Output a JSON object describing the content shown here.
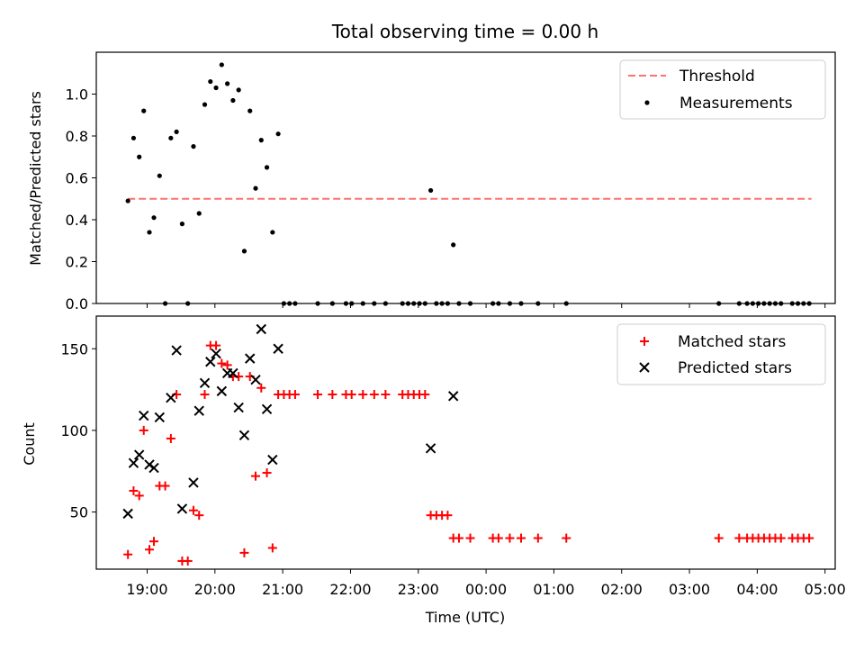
{
  "chart_data": [
    {
      "type": "scatter",
      "title": "Total observing time = 0.00 h",
      "xlabel": "",
      "ylabel": "Matched/Predicted stars",
      "ylim": [
        0,
        1.2
      ],
      "yticks": [
        "0.0",
        "0.2",
        "0.4",
        "0.6",
        "0.8",
        "1.0"
      ],
      "legend": {
        "position": "top-right",
        "entries": [
          "Threshold",
          "Measurements"
        ]
      },
      "threshold": {
        "name": "Threshold",
        "value": 0.5,
        "x_start": "18:43",
        "x_end": "04:48",
        "color": "#ff7070"
      },
      "series": [
        {
          "name": "Measurements",
          "color": "#000000",
          "points": [
            [
              "18:43",
              0.49
            ],
            [
              "18:48",
              0.79
            ],
            [
              "18:53",
              0.7
            ],
            [
              "18:57",
              0.92
            ],
            [
              "19:02",
              0.34
            ],
            [
              "19:06",
              0.41
            ],
            [
              "19:11",
              0.61
            ],
            [
              "19:16",
              0.0
            ],
            [
              "19:21",
              0.79
            ],
            [
              "19:26",
              0.82
            ],
            [
              "19:31",
              0.38
            ],
            [
              "19:36",
              0.0
            ],
            [
              "19:41",
              0.75
            ],
            [
              "19:46",
              0.43
            ],
            [
              "19:51",
              0.95
            ],
            [
              "19:56",
              1.06
            ],
            [
              "20:01",
              1.03
            ],
            [
              "20:06",
              1.14
            ],
            [
              "20:11",
              1.05
            ],
            [
              "20:16",
              0.97
            ],
            [
              "20:21",
              1.02
            ],
            [
              "20:26",
              0.25
            ],
            [
              "20:31",
              0.92
            ],
            [
              "20:36",
              0.55
            ],
            [
              "20:41",
              0.78
            ],
            [
              "20:46",
              0.65
            ],
            [
              "20:51",
              0.34
            ],
            [
              "20:56",
              0.81
            ],
            [
              "21:01",
              0.0
            ],
            [
              "21:06",
              0.0
            ],
            [
              "21:11",
              0.0
            ],
            [
              "21:31",
              0.0
            ],
            [
              "21:44",
              0.0
            ],
            [
              "21:56",
              0.0
            ],
            [
              "22:01",
              0.0
            ],
            [
              "22:11",
              0.0
            ],
            [
              "22:21",
              0.0
            ],
            [
              "22:31",
              0.0
            ],
            [
              "22:46",
              0.0
            ],
            [
              "22:51",
              0.0
            ],
            [
              "22:56",
              0.0
            ],
            [
              "23:01",
              0.0
            ],
            [
              "23:06",
              0.0
            ],
            [
              "23:11",
              0.54
            ],
            [
              "23:16",
              0.0
            ],
            [
              "23:21",
              0.0
            ],
            [
              "23:26",
              0.0
            ],
            [
              "23:31",
              0.28
            ],
            [
              "23:36",
              0.0
            ],
            [
              "23:46",
              0.0
            ],
            [
              "00:06",
              0.0
            ],
            [
              "00:11",
              0.0
            ],
            [
              "00:21",
              0.0
            ],
            [
              "00:31",
              0.0
            ],
            [
              "00:46",
              0.0
            ],
            [
              "01:11",
              0.0
            ],
            [
              "03:26",
              0.0
            ],
            [
              "03:44",
              0.0
            ],
            [
              "03:51",
              0.0
            ],
            [
              "03:56",
              0.0
            ],
            [
              "04:01",
              0.0
            ],
            [
              "04:06",
              0.0
            ],
            [
              "04:11",
              0.0
            ],
            [
              "04:16",
              0.0
            ],
            [
              "04:21",
              0.0
            ],
            [
              "04:31",
              0.0
            ],
            [
              "04:36",
              0.0
            ],
            [
              "04:41",
              0.0
            ],
            [
              "04:46",
              0.0
            ]
          ]
        }
      ]
    },
    {
      "type": "scatter",
      "title": "",
      "xlabel": "Time (UTC)",
      "ylabel": "Count",
      "ylim": [
        15,
        170
      ],
      "yticks": [
        "50",
        "100",
        "150"
      ],
      "xticks": [
        "19:00",
        "20:00",
        "21:00",
        "22:00",
        "23:00",
        "00:00",
        "01:00",
        "02:00",
        "03:00",
        "04:00",
        "05:00"
      ],
      "legend": {
        "position": "top-right",
        "entries": [
          "Matched stars",
          "Predicted stars"
        ]
      },
      "series": [
        {
          "name": "Matched stars",
          "color": "#ff0000",
          "marker": "plus",
          "points": [
            [
              "18:43",
              24
            ],
            [
              "18:48",
              63
            ],
            [
              "18:53",
              60
            ],
            [
              "18:57",
              100
            ],
            [
              "19:02",
              27
            ],
            [
              "19:06",
              32
            ],
            [
              "19:11",
              66
            ],
            [
              "19:16",
              66
            ],
            [
              "19:21",
              95
            ],
            [
              "19:26",
              122
            ],
            [
              "19:31",
              20
            ],
            [
              "19:36",
              20
            ],
            [
              "19:41",
              51
            ],
            [
              "19:46",
              48
            ],
            [
              "19:51",
              122
            ],
            [
              "19:56",
              152
            ],
            [
              "20:01",
              152
            ],
            [
              "20:06",
              141
            ],
            [
              "20:11",
              140
            ],
            [
              "20:16",
              133
            ],
            [
              "20:21",
              133
            ],
            [
              "20:26",
              25
            ],
            [
              "20:31",
              133
            ],
            [
              "20:36",
              72
            ],
            [
              "20:41",
              126
            ],
            [
              "20:46",
              74
            ],
            [
              "20:51",
              28
            ],
            [
              "20:56",
              122
            ],
            [
              "21:01",
              122
            ],
            [
              "21:06",
              122
            ],
            [
              "21:11",
              122
            ],
            [
              "21:31",
              122
            ],
            [
              "21:44",
              122
            ],
            [
              "21:56",
              122
            ],
            [
              "22:01",
              122
            ],
            [
              "22:11",
              122
            ],
            [
              "22:21",
              122
            ],
            [
              "22:31",
              122
            ],
            [
              "22:46",
              122
            ],
            [
              "22:51",
              122
            ],
            [
              "22:56",
              122
            ],
            [
              "23:01",
              122
            ],
            [
              "23:06",
              122
            ],
            [
              "23:11",
              48
            ],
            [
              "23:16",
              48
            ],
            [
              "23:21",
              48
            ],
            [
              "23:26",
              48
            ],
            [
              "23:31",
              34
            ],
            [
              "23:36",
              34
            ],
            [
              "23:46",
              34
            ],
            [
              "00:06",
              34
            ],
            [
              "00:11",
              34
            ],
            [
              "00:21",
              34
            ],
            [
              "00:31",
              34
            ],
            [
              "00:46",
              34
            ],
            [
              "01:11",
              34
            ],
            [
              "03:26",
              34
            ],
            [
              "03:44",
              34
            ],
            [
              "03:51",
              34
            ],
            [
              "03:56",
              34
            ],
            [
              "04:01",
              34
            ],
            [
              "04:06",
              34
            ],
            [
              "04:11",
              34
            ],
            [
              "04:16",
              34
            ],
            [
              "04:21",
              34
            ],
            [
              "04:31",
              34
            ],
            [
              "04:36",
              34
            ],
            [
              "04:41",
              34
            ],
            [
              "04:46",
              34
            ]
          ]
        },
        {
          "name": "Predicted stars",
          "color": "#000000",
          "marker": "x",
          "points": [
            [
              "18:43",
              49
            ],
            [
              "18:48",
              80
            ],
            [
              "18:53",
              85
            ],
            [
              "18:57",
              109
            ],
            [
              "19:02",
              79
            ],
            [
              "19:06",
              77
            ],
            [
              "19:11",
              108
            ],
            [
              "19:21",
              120
            ],
            [
              "19:26",
              149
            ],
            [
              "19:31",
              52
            ],
            [
              "19:41",
              68
            ],
            [
              "19:46",
              112
            ],
            [
              "19:51",
              129
            ],
            [
              "19:56",
              142
            ],
            [
              "20:01",
              147
            ],
            [
              "20:06",
              124
            ],
            [
              "20:11",
              135
            ],
            [
              "20:16",
              135
            ],
            [
              "20:21",
              114
            ],
            [
              "20:26",
              97
            ],
            [
              "20:31",
              144
            ],
            [
              "20:36",
              131
            ],
            [
              "20:41",
              162
            ],
            [
              "20:46",
              113
            ],
            [
              "20:51",
              82
            ],
            [
              "20:56",
              150
            ],
            [
              "23:11",
              89
            ],
            [
              "23:31",
              121
            ]
          ]
        }
      ]
    }
  ]
}
